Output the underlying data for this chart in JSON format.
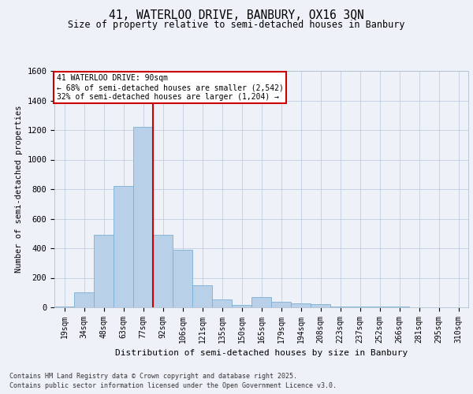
{
  "title_line1": "41, WATERLOO DRIVE, BANBURY, OX16 3QN",
  "title_line2": "Size of property relative to semi-detached houses in Banbury",
  "xlabel": "Distribution of semi-detached houses by size in Banbury",
  "ylabel": "Number of semi-detached properties",
  "categories": [
    "19sqm",
    "34sqm",
    "48sqm",
    "63sqm",
    "77sqm",
    "92sqm",
    "106sqm",
    "121sqm",
    "135sqm",
    "150sqm",
    "165sqm",
    "179sqm",
    "194sqm",
    "208sqm",
    "223sqm",
    "237sqm",
    "252sqm",
    "266sqm",
    "281sqm",
    "295sqm",
    "310sqm"
  ],
  "bar_values": [
    5,
    100,
    490,
    820,
    1220,
    490,
    390,
    150,
    55,
    15,
    70,
    35,
    25,
    20,
    5,
    5,
    3,
    3,
    2,
    1,
    1
  ],
  "bar_color": "#b8d0e8",
  "bar_edge_color": "#7aafd4",
  "vline_color": "#cc0000",
  "property_label": "41 WATERLOO DRIVE: 90sqm",
  "pct_smaller": "68% of semi-detached houses are smaller (2,542)",
  "pct_larger": "32% of semi-detached houses are larger (1,204)",
  "ylim": [
    0,
    1600
  ],
  "yticks": [
    0,
    200,
    400,
    600,
    800,
    1000,
    1200,
    1400,
    1600
  ],
  "annotation_box_color": "#ffffff",
  "annotation_box_edge": "#cc0000",
  "footer_line1": "Contains HM Land Registry data © Crown copyright and database right 2025.",
  "footer_line2": "Contains public sector information licensed under the Open Government Licence v3.0.",
  "bg_color": "#eef2f8",
  "plot_bg_color": "#eef2f8"
}
